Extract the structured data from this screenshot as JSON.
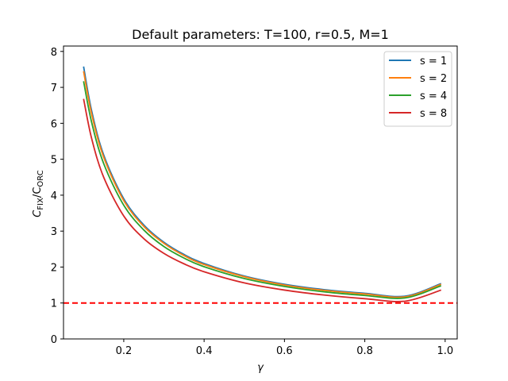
{
  "chart_data": {
    "type": "line",
    "title": "Default parameters: T=100, r=0.5, M=1",
    "xlabel": "γ",
    "ylabel": {
      "main": "C",
      "sub1": "FIX",
      "mid": "/C",
      "sub2": "ORC"
    },
    "xlim": [
      0.05,
      1.03
    ],
    "ylim": [
      0,
      8.15
    ],
    "xticks": [
      0.2,
      0.4,
      0.6,
      0.8,
      1.0
    ],
    "xtick_labels": [
      "0.2",
      "0.4",
      "0.6",
      "0.8",
      "1.0"
    ],
    "yticks": [
      0,
      1,
      2,
      3,
      4,
      5,
      6,
      7,
      8
    ],
    "ytick_labels": [
      "0",
      "1",
      "2",
      "3",
      "4",
      "5",
      "6",
      "7",
      "8"
    ],
    "grid": false,
    "legend_position": "top-right",
    "x": [
      0.1,
      0.12,
      0.15,
      0.2,
      0.25,
      0.3,
      0.35,
      0.4,
      0.5,
      0.6,
      0.7,
      0.8,
      0.9,
      0.99
    ],
    "series": [
      {
        "name": "s = 1",
        "color": "#1f77b4",
        "values": [
          7.58,
          6.35,
          5.12,
          3.9,
          3.17,
          2.69,
          2.35,
          2.1,
          1.75,
          1.52,
          1.37,
          1.27,
          1.19,
          1.54
        ]
      },
      {
        "name": "s = 2",
        "color": "#ff7f0e",
        "values": [
          7.45,
          6.26,
          5.06,
          3.85,
          3.13,
          2.66,
          2.32,
          2.07,
          1.73,
          1.5,
          1.35,
          1.25,
          1.17,
          1.52
        ]
      },
      {
        "name": "s = 4",
        "color": "#2ca02c",
        "values": [
          7.17,
          6.03,
          4.88,
          3.72,
          3.03,
          2.57,
          2.25,
          2.01,
          1.68,
          1.46,
          1.31,
          1.21,
          1.14,
          1.48
        ]
      },
      {
        "name": "s = 8",
        "color": "#d62728",
        "values": [
          6.68,
          5.58,
          4.5,
          3.42,
          2.79,
          2.38,
          2.09,
          1.87,
          1.56,
          1.36,
          1.22,
          1.12,
          1.05,
          1.36
        ]
      }
    ],
    "reference_line": {
      "y": 1,
      "color": "#ff0000",
      "style": "dashed"
    }
  }
}
